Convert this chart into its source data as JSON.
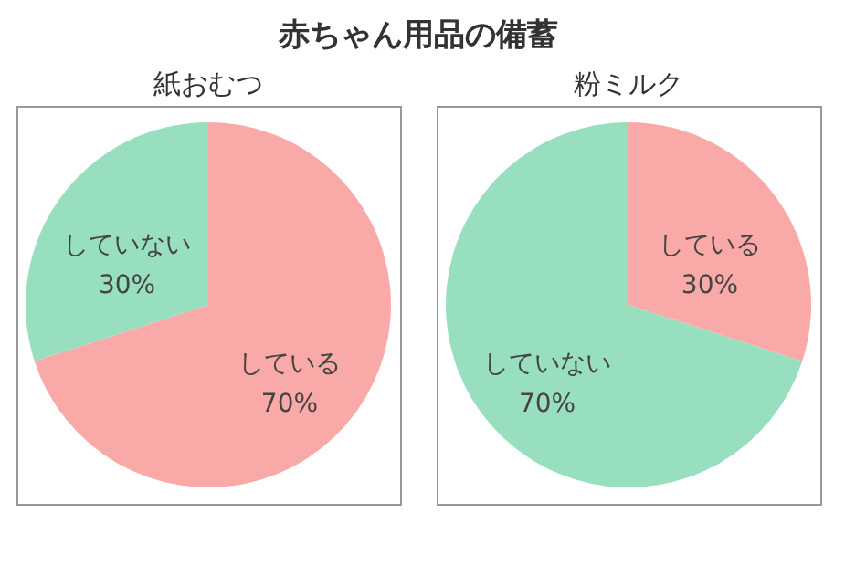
{
  "chart_data": [
    {
      "type": "pie",
      "title": "紙おむつ",
      "annotations": [
        "赤ちゃん用品の備蓄"
      ],
      "categories": [
        "している",
        "していない"
      ],
      "values": [
        70,
        30
      ],
      "value_labels": [
        "70%",
        "30%"
      ],
      "colors": [
        "#f9a9a8",
        "#97dfbf"
      ]
    },
    {
      "type": "pie",
      "title": "粉ミルク",
      "categories": [
        "している",
        "していない"
      ],
      "values": [
        30,
        70
      ],
      "value_labels": [
        "30%",
        "70%"
      ],
      "colors": [
        "#f9a9a8",
        "#97dfbf"
      ]
    }
  ]
}
